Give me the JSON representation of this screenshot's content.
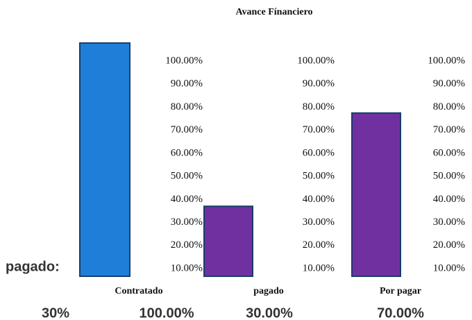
{
  "chart_data": {
    "type": "bar",
    "title": "Avance Fínanciero",
    "categories": [
      "Contratado",
      "pagado",
      "Por pagar"
    ],
    "values": [
      100,
      30,
      70
    ],
    "value_labels": [
      "100.00%",
      "30.00%",
      "70.00%"
    ],
    "colors": [
      "#1f7fd8",
      "#7030a0",
      "#7030a0"
    ],
    "ylim": [
      0,
      100
    ],
    "yticks": [
      {
        "value": 10,
        "label": "10.00%"
      },
      {
        "value": 20,
        "label": "20.00%"
      },
      {
        "value": 30,
        "label": "30.00%"
      },
      {
        "value": 40,
        "label": "40.00%"
      },
      {
        "value": 50,
        "label": "50.00%"
      },
      {
        "value": 60,
        "label": "60.00%"
      },
      {
        "value": 70,
        "label": "70.00%"
      },
      {
        "value": 80,
        "label": "80.00%"
      },
      {
        "value": 90,
        "label": "90.00%"
      },
      {
        "value": 100,
        "label": "100.00%"
      }
    ],
    "annotations": [
      "pagado:",
      "30%"
    ]
  }
}
